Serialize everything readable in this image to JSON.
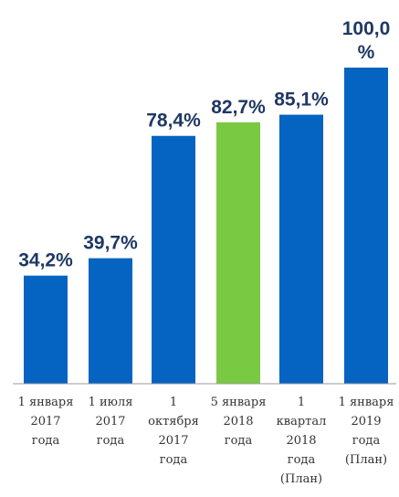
{
  "chart_data": {
    "type": "bar",
    "categories": [
      [
        "1 января",
        "2017",
        "года"
      ],
      [
        "1 июля",
        "2017",
        "года"
      ],
      [
        "1",
        "октября",
        "2017",
        "года"
      ],
      [
        "5 января",
        "2018",
        "года"
      ],
      [
        "1",
        "квартал",
        "2018",
        "года",
        "(План)"
      ],
      [
        "1 января",
        "2019",
        "года",
        "(План)"
      ]
    ],
    "values": [
      34.2,
      39.7,
      78.4,
      82.7,
      85.1,
      100.0
    ],
    "value_labels": [
      [
        "34,2%"
      ],
      [
        "39,7%"
      ],
      [
        "78,4%"
      ],
      [
        "82,7%"
      ],
      [
        "85,1%"
      ],
      [
        "100,0",
        "%"
      ]
    ],
    "bar_colors": [
      "#0563c1",
      "#0563c1",
      "#0563c1",
      "#7ac943",
      "#0563c1",
      "#0563c1"
    ],
    "label_color": "#1f3864",
    "category_color": "#333333",
    "axis_color": "#9a9a9a",
    "ylim": [
      0,
      100
    ],
    "grid": false,
    "legend": "none",
    "title": "",
    "xlabel": "",
    "ylabel": ""
  }
}
